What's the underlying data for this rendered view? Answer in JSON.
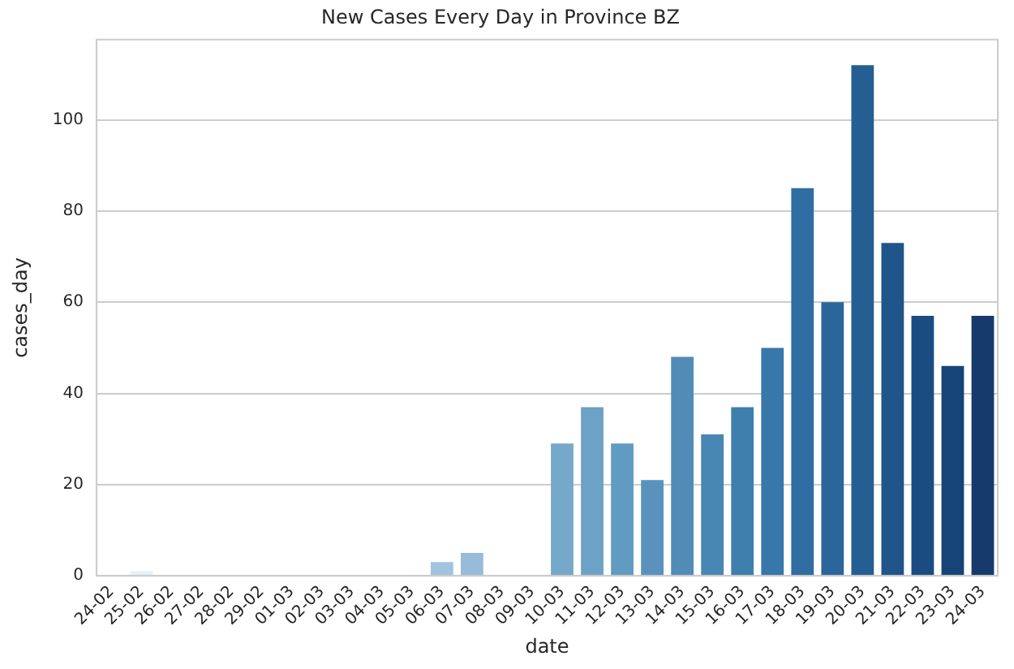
{
  "chart_data": {
    "type": "bar",
    "title": "New Cases Every Day in Province BZ",
    "xlabel": "date",
    "ylabel": "cases_day",
    "categories": [
      "24-02",
      "25-02",
      "26-02",
      "27-02",
      "28-02",
      "29-02",
      "01-03",
      "02-03",
      "03-03",
      "04-03",
      "05-03",
      "06-03",
      "07-03",
      "08-03",
      "09-03",
      "10-03",
      "11-03",
      "12-03",
      "13-03",
      "14-03",
      "15-03",
      "16-03",
      "17-03",
      "18-03",
      "19-03",
      "20-03",
      "21-03",
      "22-03",
      "23-03",
      "24-03"
    ],
    "values": [
      0,
      1,
      0,
      0,
      0,
      0,
      0,
      0,
      0,
      0,
      0,
      3,
      5,
      0,
      0,
      29,
      37,
      29,
      21,
      48,
      31,
      37,
      50,
      85,
      60,
      112,
      73,
      57,
      46,
      57
    ],
    "colors": [
      "#eef4fa",
      "#e7eff8",
      "#e0ebf5",
      "#d9e6f3",
      "#d2e2f1",
      "#cbdeef",
      "#c4d9ec",
      "#bdd5ea",
      "#b6d0e7",
      "#afcce5",
      "#a8c7e1",
      "#a2c3de",
      "#97bcda",
      "#8cb5d5",
      "#81aed1",
      "#76a8c9",
      "#6ba2c5",
      "#619bc1",
      "#5993bd",
      "#518cb7",
      "#4886b3",
      "#3f7fae",
      "#3777aa",
      "#2f6da2",
      "#2a6699",
      "#255e92",
      "#1f5589",
      "#1b4c81",
      "#174478",
      "#163a6b"
    ],
    "ylim": [
      0,
      117.6
    ],
    "yticks": [
      0,
      20,
      40,
      60,
      80,
      100
    ],
    "grid": "y"
  }
}
